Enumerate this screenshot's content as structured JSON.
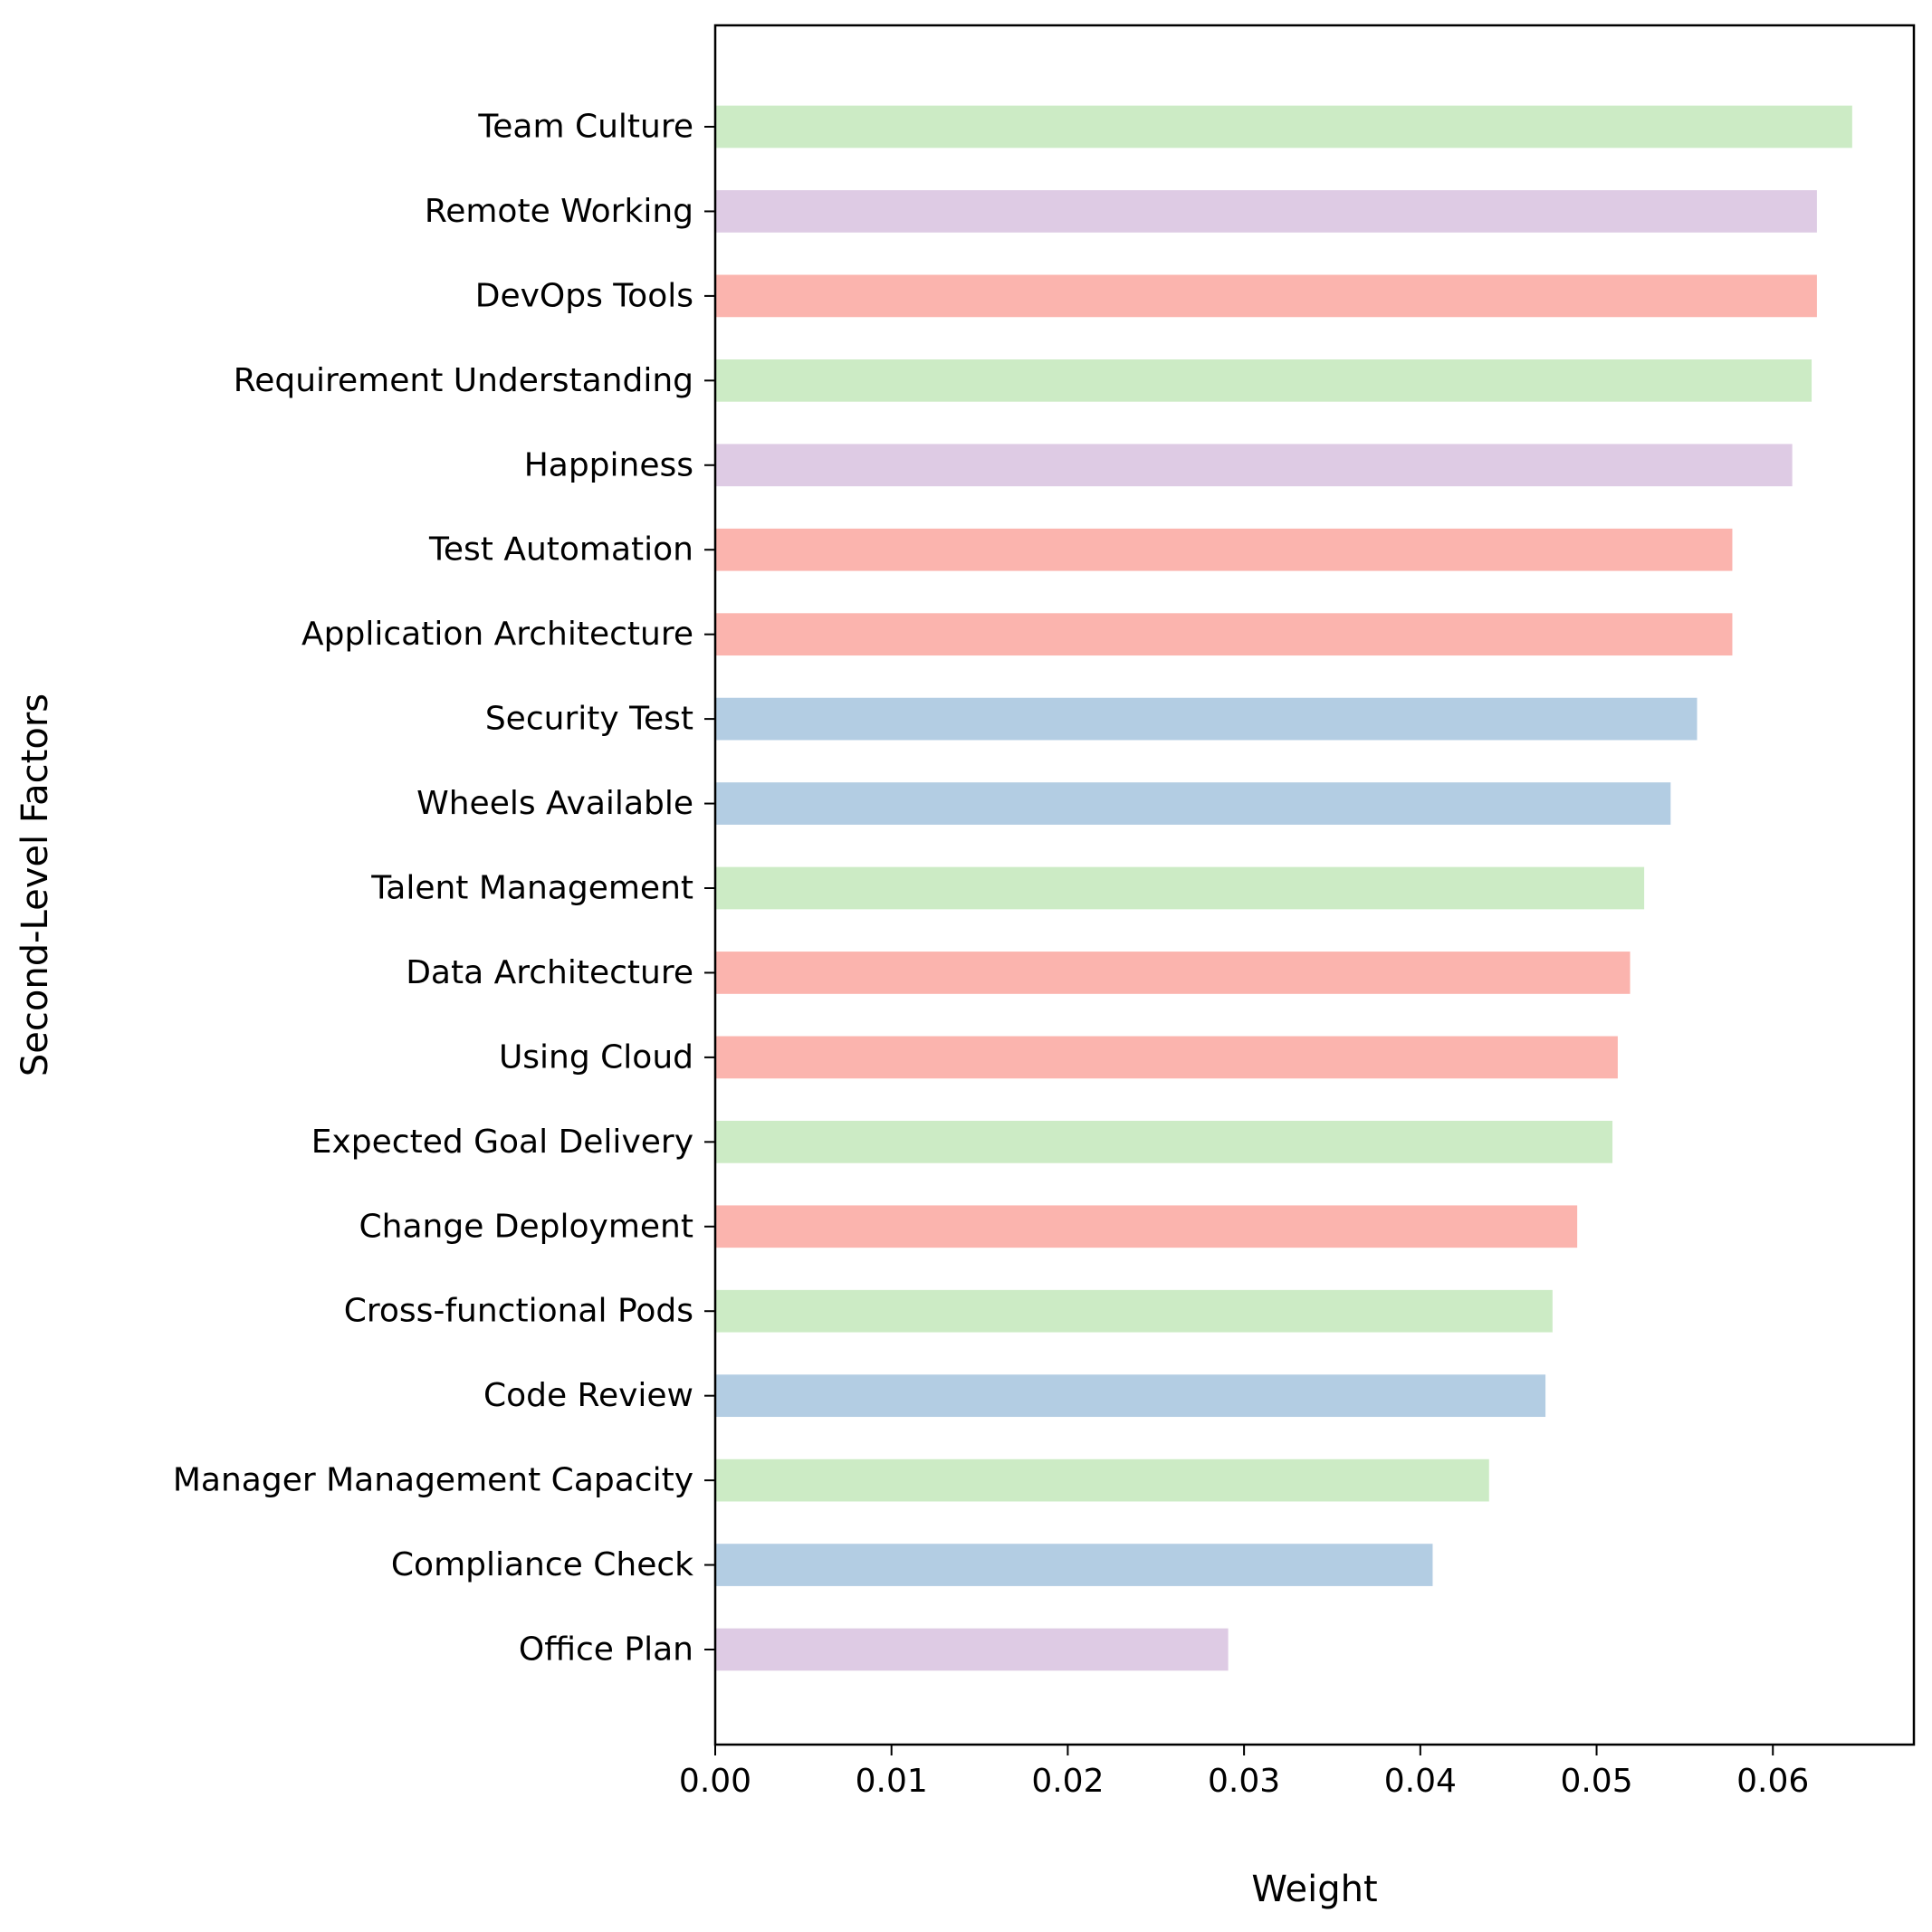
{
  "chart_data": {
    "type": "bar",
    "orientation": "horizontal",
    "title": "",
    "xlabel": "Weight",
    "ylabel": "Second-Level Factors",
    "xlim": [
      0,
      0.068
    ],
    "xticks": [
      "0.00",
      "0.01",
      "0.02",
      "0.03",
      "0.04",
      "0.05",
      "0.06"
    ],
    "grid": false,
    "legend": "none",
    "colors": {
      "green": "#ccebc5",
      "purple": "#decbe4",
      "red": "#fbb4ae",
      "blue": "#b3cde3"
    },
    "categories": [
      "Team Culture",
      "Remote Working",
      "DevOps Tools",
      "Requirement Understanding",
      "Happiness",
      "Test Automation",
      "Application Architecture",
      "Security Test",
      "Wheels Available",
      "Talent Management",
      "Data Architecture",
      "Using Cloud",
      "Expected Goal Delivery",
      "Change Deployment",
      "Cross-functional Pods",
      "Code Review",
      "Manager Management Capacity",
      "Compliance Check",
      "Office Plan"
    ],
    "values": [
      0.0645,
      0.0625,
      0.0625,
      0.0622,
      0.0611,
      0.0577,
      0.0577,
      0.0557,
      0.0542,
      0.0527,
      0.0519,
      0.0512,
      0.0509,
      0.0489,
      0.0475,
      0.0471,
      0.0439,
      0.0407,
      0.0291
    ],
    "bar_colors": [
      "green",
      "purple",
      "red",
      "green",
      "purple",
      "red",
      "red",
      "blue",
      "blue",
      "green",
      "red",
      "red",
      "green",
      "red",
      "green",
      "blue",
      "green",
      "blue",
      "purple"
    ]
  }
}
